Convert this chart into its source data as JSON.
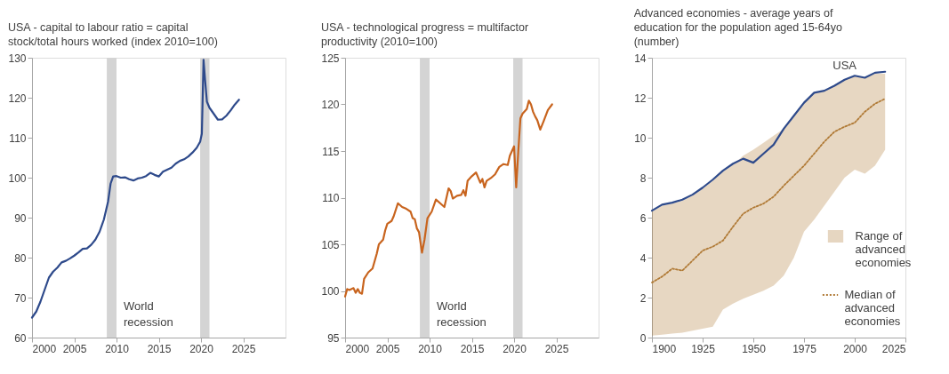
{
  "chart_data": [
    {
      "type": "line",
      "title": "USA - capital to labour ratio = capital stock/total hours worked (index 2010=100)",
      "x": [
        2000,
        2000.5,
        2001,
        2001.5,
        2002,
        2002.5,
        2003,
        2003.5,
        2004,
        2004.5,
        2005,
        2005.5,
        2006,
        2006.5,
        2007,
        2007.5,
        2008,
        2008.5,
        2009,
        2009.3,
        2009.6,
        2010,
        2010.5,
        2011,
        2011.5,
        2012,
        2012.5,
        2013,
        2013.5,
        2014,
        2014.5,
        2015,
        2015.5,
        2016,
        2016.5,
        2017,
        2017.5,
        2018,
        2018.5,
        2019,
        2019.5,
        2019.9,
        2020.1,
        2020.3,
        2020.5,
        2020.7,
        2021,
        2021.5,
        2022,
        2022.5,
        2023,
        2023.5,
        2024,
        2024.5
      ],
      "series": [
        {
          "color": "#2e4a8b",
          "line_style": "solid",
          "values": [
            65,
            66.5,
            69,
            72,
            75,
            76.5,
            77.5,
            78.8,
            79.2,
            79.8,
            80.5,
            81.3,
            82.2,
            82.3,
            83.2,
            84.5,
            86.5,
            89.5,
            94,
            98.5,
            100.3,
            100.4,
            100,
            100.1,
            99.6,
            99.3,
            99.8,
            100,
            100.4,
            101.2,
            100.7,
            100.3,
            101.5,
            102,
            102.5,
            103.5,
            104.2,
            104.6,
            105.3,
            106.3,
            107.5,
            109,
            111,
            129.5,
            124,
            119,
            117.5,
            116,
            114.5,
            114.6,
            115.5,
            116.8,
            118.3,
            119.5
          ]
        }
      ],
      "xlim": [
        2000,
        2030
      ],
      "xticks": [
        2000,
        2005,
        2010,
        2015,
        2020,
        2025
      ],
      "ylim": [
        60,
        130
      ],
      "yticks": [
        60,
        70,
        80,
        90,
        100,
        110,
        120,
        130
      ],
      "bands": [
        {
          "axis": "x",
          "from": 2008.85,
          "to": 2010,
          "label": "World recession",
          "color": "#d4d4d4"
        },
        {
          "axis": "x",
          "from": 2019.9,
          "to": 2021,
          "color": "#d4d4d4"
        }
      ],
      "grid": false,
      "legend": false
    },
    {
      "type": "line",
      "title": "USA - technological progress = multifactor productivity (2010=100)",
      "x": [
        2000,
        2000.25,
        2000.5,
        2001,
        2001.25,
        2001.5,
        2001.75,
        2002,
        2002.25,
        2002.75,
        2003.25,
        2003.75,
        2004,
        2004.5,
        2004.75,
        2005,
        2005.5,
        2005.75,
        2006.25,
        2006.75,
        2007.25,
        2007.75,
        2008,
        2008.25,
        2008.5,
        2008.75,
        2009.1,
        2009.4,
        2009.75,
        2010.25,
        2010.75,
        2011.25,
        2011.75,
        2012.25,
        2012.5,
        2012.75,
        2013.25,
        2013.75,
        2014,
        2014.25,
        2014.5,
        2015,
        2015.5,
        2016,
        2016.25,
        2016.5,
        2016.75,
        2017.25,
        2017.75,
        2018.25,
        2018.75,
        2019.25,
        2019.5,
        2019.75,
        2020,
        2020.25,
        2020.5,
        2020.75,
        2021,
        2021.5,
        2021.75,
        2022,
        2022.25,
        2022.5,
        2022.75,
        2023.1,
        2023.5,
        2024,
        2024.5
      ],
      "series": [
        {
          "color": "#c8641e",
          "line_style": "solid",
          "values": [
            99.4,
            100.2,
            100.1,
            100.3,
            99.8,
            100.2,
            99.8,
            99.7,
            101.3,
            102,
            102.4,
            104,
            105,
            105.5,
            106.5,
            107.2,
            107.5,
            108,
            109.4,
            109,
            108.8,
            108.5,
            107.8,
            107.7,
            106.7,
            106.3,
            104.1,
            105.5,
            107.8,
            108.5,
            109.8,
            109.4,
            109,
            111,
            110.7,
            109.9,
            110.2,
            110.3,
            110.8,
            110.2,
            111.8,
            112.3,
            112.7,
            111.6,
            112,
            111.1,
            111.8,
            112.1,
            112.5,
            113.3,
            113.6,
            113.5,
            114.5,
            115,
            115.5,
            111.1,
            115,
            118.5,
            119,
            119.5,
            120.4,
            120,
            119.2,
            118.7,
            118.3,
            117.3,
            118.2,
            119.4,
            120
          ]
        }
      ],
      "xlim": [
        2000,
        2030
      ],
      "xticks": [
        2000,
        2005,
        2010,
        2015,
        2020,
        2025
      ],
      "ylim": [
        95,
        125
      ],
      "yticks": [
        95,
        100,
        105,
        110,
        115,
        120,
        125
      ],
      "bands": [
        {
          "axis": "x",
          "from": 2008.85,
          "to": 2010,
          "label": "World recession",
          "color": "#d4d4d4"
        },
        {
          "axis": "x",
          "from": 2019.9,
          "to": 2021,
          "color": "#d4d4d4"
        }
      ],
      "grid": false,
      "legend": false
    },
    {
      "type": "line",
      "title": "Advanced economies - average years of education for the population aged 15-64yo (number)",
      "x": [
        1900,
        1905,
        1910,
        1915,
        1920,
        1925,
        1930,
        1935,
        1940,
        1945,
        1950,
        1955,
        1960,
        1965,
        1970,
        1975,
        1980,
        1985,
        1990,
        1995,
        2000,
        2005,
        2010,
        2015
      ],
      "series": [
        {
          "name": "USA",
          "color": "#2e4a8b",
          "line_style": "solid",
          "values": [
            6.35,
            6.65,
            6.75,
            6.9,
            7.15,
            7.5,
            7.9,
            8.35,
            8.7,
            8.95,
            8.75,
            9.2,
            9.65,
            10.45,
            11.1,
            11.75,
            12.25,
            12.35,
            12.6,
            12.9,
            13.1,
            13.0,
            13.25,
            13.3
          ]
        },
        {
          "name": "Median of advanced economies",
          "color": "#b07a36",
          "line_style": "dotted",
          "values": [
            2.75,
            3.05,
            3.45,
            3.35,
            3.85,
            4.35,
            4.55,
            4.85,
            5.55,
            6.2,
            6.5,
            6.7,
            7.05,
            7.6,
            8.1,
            8.6,
            9.2,
            9.8,
            10.3,
            10.55,
            10.75,
            11.3,
            11.7,
            11.95
          ],
          "lower": [
            0.1,
            0.15,
            0.2,
            0.25,
            0.35,
            0.45,
            0.55,
            1.4,
            1.7,
            1.95,
            2.15,
            2.35,
            2.6,
            3.1,
            4.0,
            5.3,
            5.9,
            6.6,
            7.3,
            8.0,
            8.4,
            8.2,
            8.6,
            9.4
          ],
          "upper": [
            6.3,
            6.6,
            6.7,
            6.85,
            7.1,
            7.45,
            7.85,
            8.3,
            8.65,
            9.1,
            9.4,
            9.75,
            10.1,
            10.45,
            11.1,
            11.75,
            12.25,
            12.35,
            12.6,
            12.9,
            13.1,
            13.0,
            13.2,
            13.2
          ]
        }
      ],
      "xlim": [
        1900,
        2025
      ],
      "xticks": [
        1900,
        1925,
        1950,
        1975,
        2000,
        2025
      ],
      "ylim": [
        0,
        14
      ],
      "yticks": [
        0,
        2,
        4,
        6,
        8,
        10,
        12,
        14
      ],
      "annotations": [
        "Range of advanced economies"
      ],
      "grid": false,
      "legend": "bottom right"
    }
  ]
}
